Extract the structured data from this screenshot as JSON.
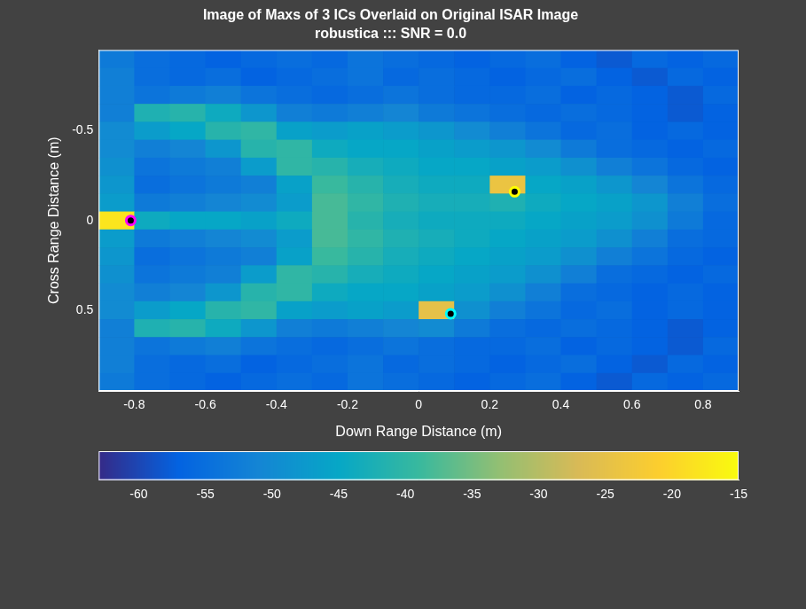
{
  "chart_data": {
    "type": "heatmap",
    "title": "Image of Maxs of 3 ICs Overlaid on Original ISAR Image",
    "subtitle": "robustica ::: SNR = 0.0",
    "x_label": "Down Range Distance (m)",
    "y_label": "Cross Range Distance (m)",
    "xlim": [
      -0.9,
      0.9
    ],
    "xticks": [
      -0.8,
      -0.6,
      -0.4,
      -0.2,
      0,
      0.2,
      0.4,
      0.6,
      0.8
    ],
    "ylim": [
      0.95,
      -0.95
    ],
    "yticks": [
      -0.5,
      0,
      0.5
    ],
    "grid": false,
    "marker": "circle",
    "points": [
      {
        "x": -0.81,
        "y": 0,
        "color": "#ff00ff"
      },
      {
        "x": 0.27,
        "y": -0.16,
        "color": "#ffff00"
      },
      {
        "x": 0.09,
        "y": 0.52,
        "color": "#00ffff"
      }
    ],
    "colorbar": {
      "range": [
        -63,
        -15
      ],
      "ticks": [
        -60,
        -55,
        -50,
        -45,
        -40,
        -35,
        -30,
        -25,
        -20,
        -15
      ]
    },
    "cells": {
      "x": [
        -0.85,
        -0.75,
        -0.65,
        -0.55,
        -0.45,
        -0.35,
        -0.25,
        -0.15,
        -0.05,
        0.05,
        0.15,
        0.25,
        0.35,
        0.45,
        0.55,
        0.65,
        0.75,
        0.85
      ],
      "y": [
        -0.9,
        -0.8,
        -0.7,
        -0.6,
        -0.5,
        -0.4,
        -0.3,
        -0.2,
        -0.1,
        0,
        0.1,
        0.2,
        0.3,
        0.4,
        0.5,
        0.6,
        0.7,
        0.8,
        0.9
      ],
      "z": [
        [
          -53,
          -55,
          -56,
          -57,
          -56,
          -55,
          -56,
          -54,
          -55,
          -56,
          -57,
          -56,
          -55,
          -57,
          -58,
          -56,
          -57,
          -56
        ],
        [
          -52,
          -55,
          -56,
          -55,
          -57,
          -56,
          -55,
          -54,
          -56,
          -55,
          -56,
          -57,
          -56,
          -55,
          -57,
          -58,
          -56,
          -57
        ],
        [
          -52,
          -54,
          -53,
          -52,
          -54,
          -55,
          -56,
          -55,
          -54,
          -55,
          -56,
          -56,
          -55,
          -57,
          -56,
          -57,
          -58,
          -56
        ],
        [
          -52,
          -42,
          -41,
          -44,
          -48,
          -52,
          -53,
          -52,
          -51,
          -53,
          -54,
          -55,
          -56,
          -55,
          -56,
          -57,
          -58,
          -57
        ],
        [
          -50,
          -47,
          -45,
          -41,
          -40,
          -46,
          -47,
          -46,
          -47,
          -48,
          -50,
          -52,
          -54,
          -56,
          -55,
          -57,
          -56,
          -57
        ],
        [
          -50,
          -52,
          -51,
          -48,
          -41,
          -40,
          -44,
          -45,
          -45,
          -46,
          -47,
          -48,
          -50,
          -53,
          -55,
          -56,
          -57,
          -56
        ],
        [
          -49,
          -54,
          -53,
          -52,
          -47,
          -40,
          -41,
          -43,
          -44,
          -45,
          -45,
          -46,
          -47,
          -49,
          -52,
          -54,
          -56,
          -57
        ],
        [
          -48,
          -55,
          -54,
          -53,
          -52,
          -46,
          -39,
          -41,
          -43,
          -44,
          -44,
          -24,
          -45,
          -46,
          -48,
          -51,
          -54,
          -56
        ],
        [
          -47,
          -53,
          -52,
          -51,
          -50,
          -47,
          -38,
          -40,
          -42,
          -43,
          -43,
          -42,
          -44,
          -45,
          -46,
          -48,
          -52,
          -55
        ],
        [
          -18,
          -44,
          -45,
          -45,
          -46,
          -44,
          -38,
          -41,
          -43,
          -44,
          -44,
          -44,
          -45,
          -46,
          -47,
          -49,
          -53,
          -56
        ],
        [
          -47,
          -53,
          -52,
          -51,
          -50,
          -47,
          -38,
          -40,
          -42,
          -43,
          -44,
          -45,
          -46,
          -47,
          -49,
          -52,
          -55,
          -56
        ],
        [
          -48,
          -55,
          -54,
          -53,
          -52,
          -46,
          -39,
          -41,
          -43,
          -44,
          -45,
          -46,
          -47,
          -49,
          -52,
          -54,
          -56,
          -57
        ],
        [
          -49,
          -54,
          -53,
          -52,
          -47,
          -40,
          -41,
          -43,
          -44,
          -45,
          -46,
          -47,
          -49,
          -52,
          -55,
          -56,
          -57,
          -56
        ],
        [
          -50,
          -52,
          -51,
          -48,
          -41,
          -40,
          -44,
          -45,
          -45,
          -46,
          -47,
          -49,
          -52,
          -55,
          -56,
          -57,
          -56,
          -57
        ],
        [
          -50,
          -47,
          -45,
          -41,
          -40,
          -46,
          -47,
          -46,
          -47,
          -25,
          -49,
          -52,
          -54,
          -56,
          -55,
          -57,
          -56,
          -57
        ],
        [
          -52,
          -42,
          -41,
          -44,
          -48,
          -52,
          -53,
          -52,
          -51,
          -50,
          -53,
          -55,
          -56,
          -55,
          -56,
          -57,
          -58,
          -57
        ],
        [
          -52,
          -54,
          -53,
          -52,
          -54,
          -55,
          -56,
          -55,
          -54,
          -55,
          -56,
          -56,
          -55,
          -57,
          -56,
          -57,
          -58,
          -56
        ],
        [
          -52,
          -55,
          -56,
          -55,
          -57,
          -56,
          -55,
          -54,
          -56,
          -55,
          -56,
          -57,
          -56,
          -55,
          -57,
          -58,
          -56,
          -57
        ],
        [
          -53,
          -55,
          -56,
          -57,
          -56,
          -55,
          -56,
          -54,
          -55,
          -56,
          -57,
          -56,
          -55,
          -57,
          -58,
          -56,
          -57,
          -56
        ]
      ]
    }
  }
}
